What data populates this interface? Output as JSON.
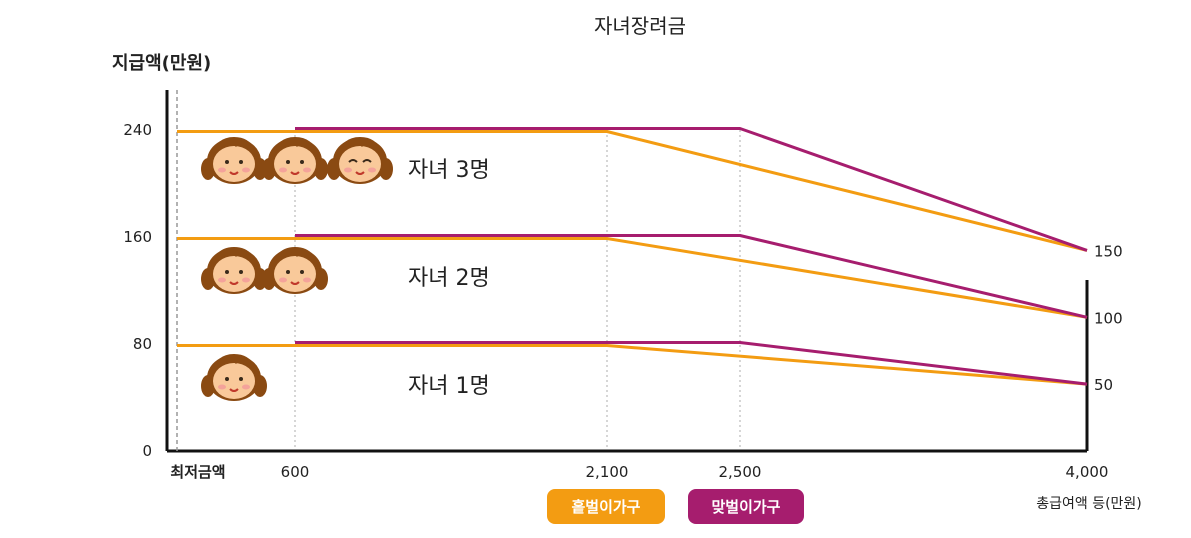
{
  "chart_data": {
    "type": "line",
    "title": "자녀장려금",
    "ylabel": "지급액(만원)",
    "xlabel": "총급여액 등(만원)",
    "x_tick_labels": [
      "최저금액",
      "600",
      "2,100",
      "2,500",
      "4,000"
    ],
    "y_tick_labels": [
      "0",
      "80",
      "160",
      "240"
    ],
    "right_end_labels": [
      "150",
      "100",
      "50"
    ],
    "ylim": [
      0,
      270
    ],
    "colors": {
      "single": "#f39c12",
      "dual": "#a61d6e"
    },
    "legend": {
      "position": "bottom-center",
      "items": [
        {
          "label": "홑벌이가구",
          "color": "#f39c12"
        },
        {
          "label": "맞벌이가구",
          "color": "#a61d6e"
        }
      ]
    },
    "groups": [
      {
        "label": "자녀 1명",
        "children": 1,
        "series": [
          {
            "name": "홑벌이가구",
            "points": [
              [
                0,
                80
              ],
              [
                2100,
                80
              ],
              [
                4000,
                50
              ]
            ]
          },
          {
            "name": "맞벌이가구",
            "points": [
              [
                600,
                80
              ],
              [
                2500,
                80
              ],
              [
                4000,
                50
              ]
            ]
          }
        ]
      },
      {
        "label": "자녀 2명",
        "children": 2,
        "series": [
          {
            "name": "홑벌이가구",
            "points": [
              [
                0,
                160
              ],
              [
                2100,
                160
              ],
              [
                4000,
                100
              ]
            ]
          },
          {
            "name": "맞벌이가구",
            "points": [
              [
                600,
                160
              ],
              [
                2500,
                160
              ],
              [
                4000,
                100
              ]
            ]
          }
        ]
      },
      {
        "label": "자녀 3명",
        "children": 3,
        "series": [
          {
            "name": "홑벌이가구",
            "points": [
              [
                0,
                240
              ],
              [
                2100,
                240
              ],
              [
                4000,
                150
              ]
            ]
          },
          {
            "name": "맞벌이가구",
            "points": [
              [
                600,
                240
              ],
              [
                2500,
                240
              ],
              [
                4000,
                150
              ]
            ]
          }
        ]
      }
    ]
  }
}
